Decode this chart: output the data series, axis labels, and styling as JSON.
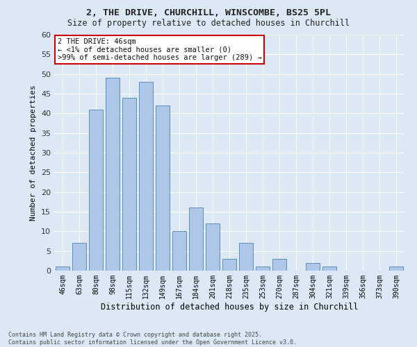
{
  "title_line1": "2, THE DRIVE, CHURCHILL, WINSCOMBE, BS25 5PL",
  "title_line2": "Size of property relative to detached houses in Churchill",
  "xlabel": "Distribution of detached houses by size in Churchill",
  "ylabel": "Number of detached properties",
  "categories": [
    "46sqm",
    "63sqm",
    "80sqm",
    "98sqm",
    "115sqm",
    "132sqm",
    "149sqm",
    "167sqm",
    "184sqm",
    "201sqm",
    "218sqm",
    "235sqm",
    "253sqm",
    "270sqm",
    "287sqm",
    "304sqm",
    "321sqm",
    "339sqm",
    "356sqm",
    "373sqm",
    "390sqm"
  ],
  "values": [
    1,
    7,
    41,
    49,
    44,
    48,
    42,
    10,
    16,
    12,
    3,
    7,
    1,
    3,
    0,
    2,
    1,
    0,
    0,
    0,
    1
  ],
  "bar_color": "#aec6e8",
  "bar_edge_color": "#5b8db8",
  "background_color": "#dce9f5",
  "annotation_text": "2 THE DRIVE: 46sqm\n← <1% of detached houses are smaller (0)\n>99% of semi-detached houses are larger (289) →",
  "annotation_box_color": "#ffffff",
  "annotation_box_edge": "#cc0000",
  "footer_text": "Contains HM Land Registry data © Crown copyright and database right 2025.\nContains public sector information licensed under the Open Government Licence v3.0.",
  "ylim": [
    0,
    60
  ],
  "yticks": [
    0,
    5,
    10,
    15,
    20,
    25,
    30,
    35,
    40,
    45,
    50,
    55,
    60
  ]
}
